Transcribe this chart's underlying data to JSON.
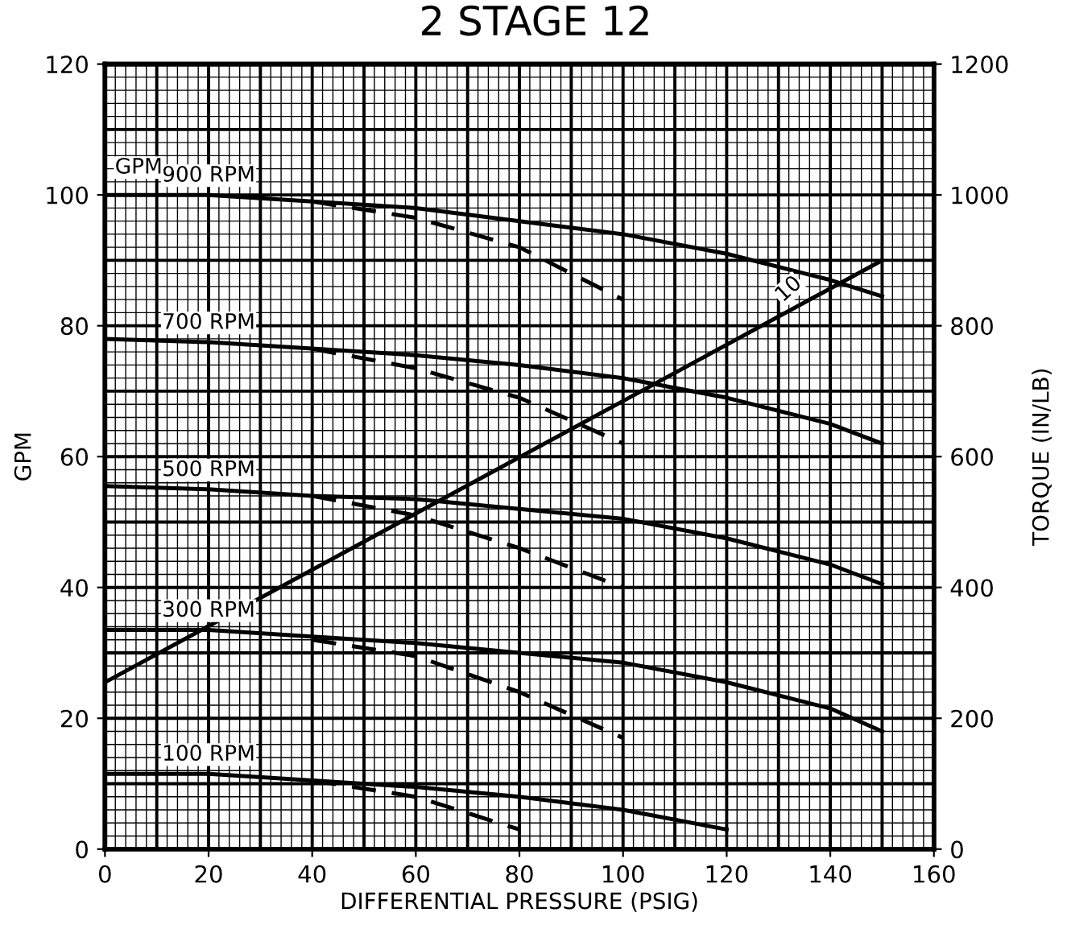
{
  "chart_data": {
    "type": "line",
    "title": "2 STAGE 12",
    "xlabel": "DIFFERENTIAL PRESSURE (PSIG)",
    "ylabel": "GPM",
    "y2label": "TORQUE (IN/LB)",
    "xlim": [
      0,
      160
    ],
    "xticks": [
      0,
      20,
      40,
      60,
      80,
      100,
      120,
      140,
      160
    ],
    "ylim": [
      0,
      120
    ],
    "yticks": [
      0,
      20,
      40,
      60,
      80,
      100,
      120
    ],
    "y2lim": [
      0,
      1200
    ],
    "y2ticks": [
      0,
      200,
      400,
      600,
      800,
      1000,
      1200
    ],
    "grid": true,
    "line_style": "solid",
    "annotations": [
      "GPM",
      {
        "text": "10",
        "x": 132,
        "y": 83
      }
    ],
    "series": [
      {
        "name": "900 RPM",
        "color": "#000000",
        "x": [
          0,
          20,
          40,
          60,
          80,
          100,
          120,
          140,
          150
        ],
        "values": [
          100,
          100,
          99,
          98,
          96,
          94,
          91,
          87,
          84.5
        ]
      },
      {
        "color": "#000000",
        "line_style": "dashed",
        "x": [
          40,
          60,
          80,
          100
        ],
        "values": [
          99,
          96.5,
          92,
          84
        ]
      },
      {
        "name": "700 RPM",
        "color": "#000000",
        "x": [
          0,
          20,
          40,
          60,
          80,
          100,
          120,
          140,
          150
        ],
        "values": [
          78,
          77.5,
          76.5,
          75.5,
          74,
          72,
          69,
          65,
          62
        ]
      },
      {
        "color": "#000000",
        "line_style": "dashed",
        "x": [
          40,
          60,
          80,
          100
        ],
        "values": [
          76.5,
          73.5,
          69,
          62
        ]
      },
      {
        "name": "500 RPM",
        "color": "#000000",
        "x": [
          0,
          20,
          40,
          60,
          80,
          100,
          120,
          140,
          150
        ],
        "values": [
          55.5,
          55,
          54,
          53.5,
          52,
          50.5,
          47.5,
          43.5,
          40.5
        ]
      },
      {
        "color": "#000000",
        "line_style": "dashed",
        "x": [
          40,
          60,
          80,
          100
        ],
        "values": [
          54,
          51,
          46,
          40
        ]
      },
      {
        "name": "300 RPM",
        "color": "#000000",
        "x": [
          0,
          20,
          40,
          60,
          80,
          100,
          120,
          140,
          150
        ],
        "values": [
          33.5,
          33.5,
          32.5,
          31.5,
          30,
          28.5,
          25.5,
          21.5,
          18
        ]
      },
      {
        "color": "#000000",
        "line_style": "dashed",
        "x": [
          40,
          60,
          80,
          100
        ],
        "values": [
          32,
          29.5,
          24,
          17
        ]
      },
      {
        "name": "100 RPM",
        "color": "#000000",
        "x": [
          0,
          20,
          40,
          60,
          80,
          100,
          120
        ],
        "values": [
          11.5,
          11.5,
          10.5,
          9.5,
          8,
          6,
          3
        ]
      },
      {
        "color": "#000000",
        "line_style": "dashed",
        "x": [
          40,
          60,
          80
        ],
        "values": [
          10.5,
          8,
          3
        ]
      },
      {
        "color": "#000000",
        "axis": "y2",
        "x": [
          0,
          150
        ],
        "values": [
          255,
          900
        ]
      }
    ]
  }
}
